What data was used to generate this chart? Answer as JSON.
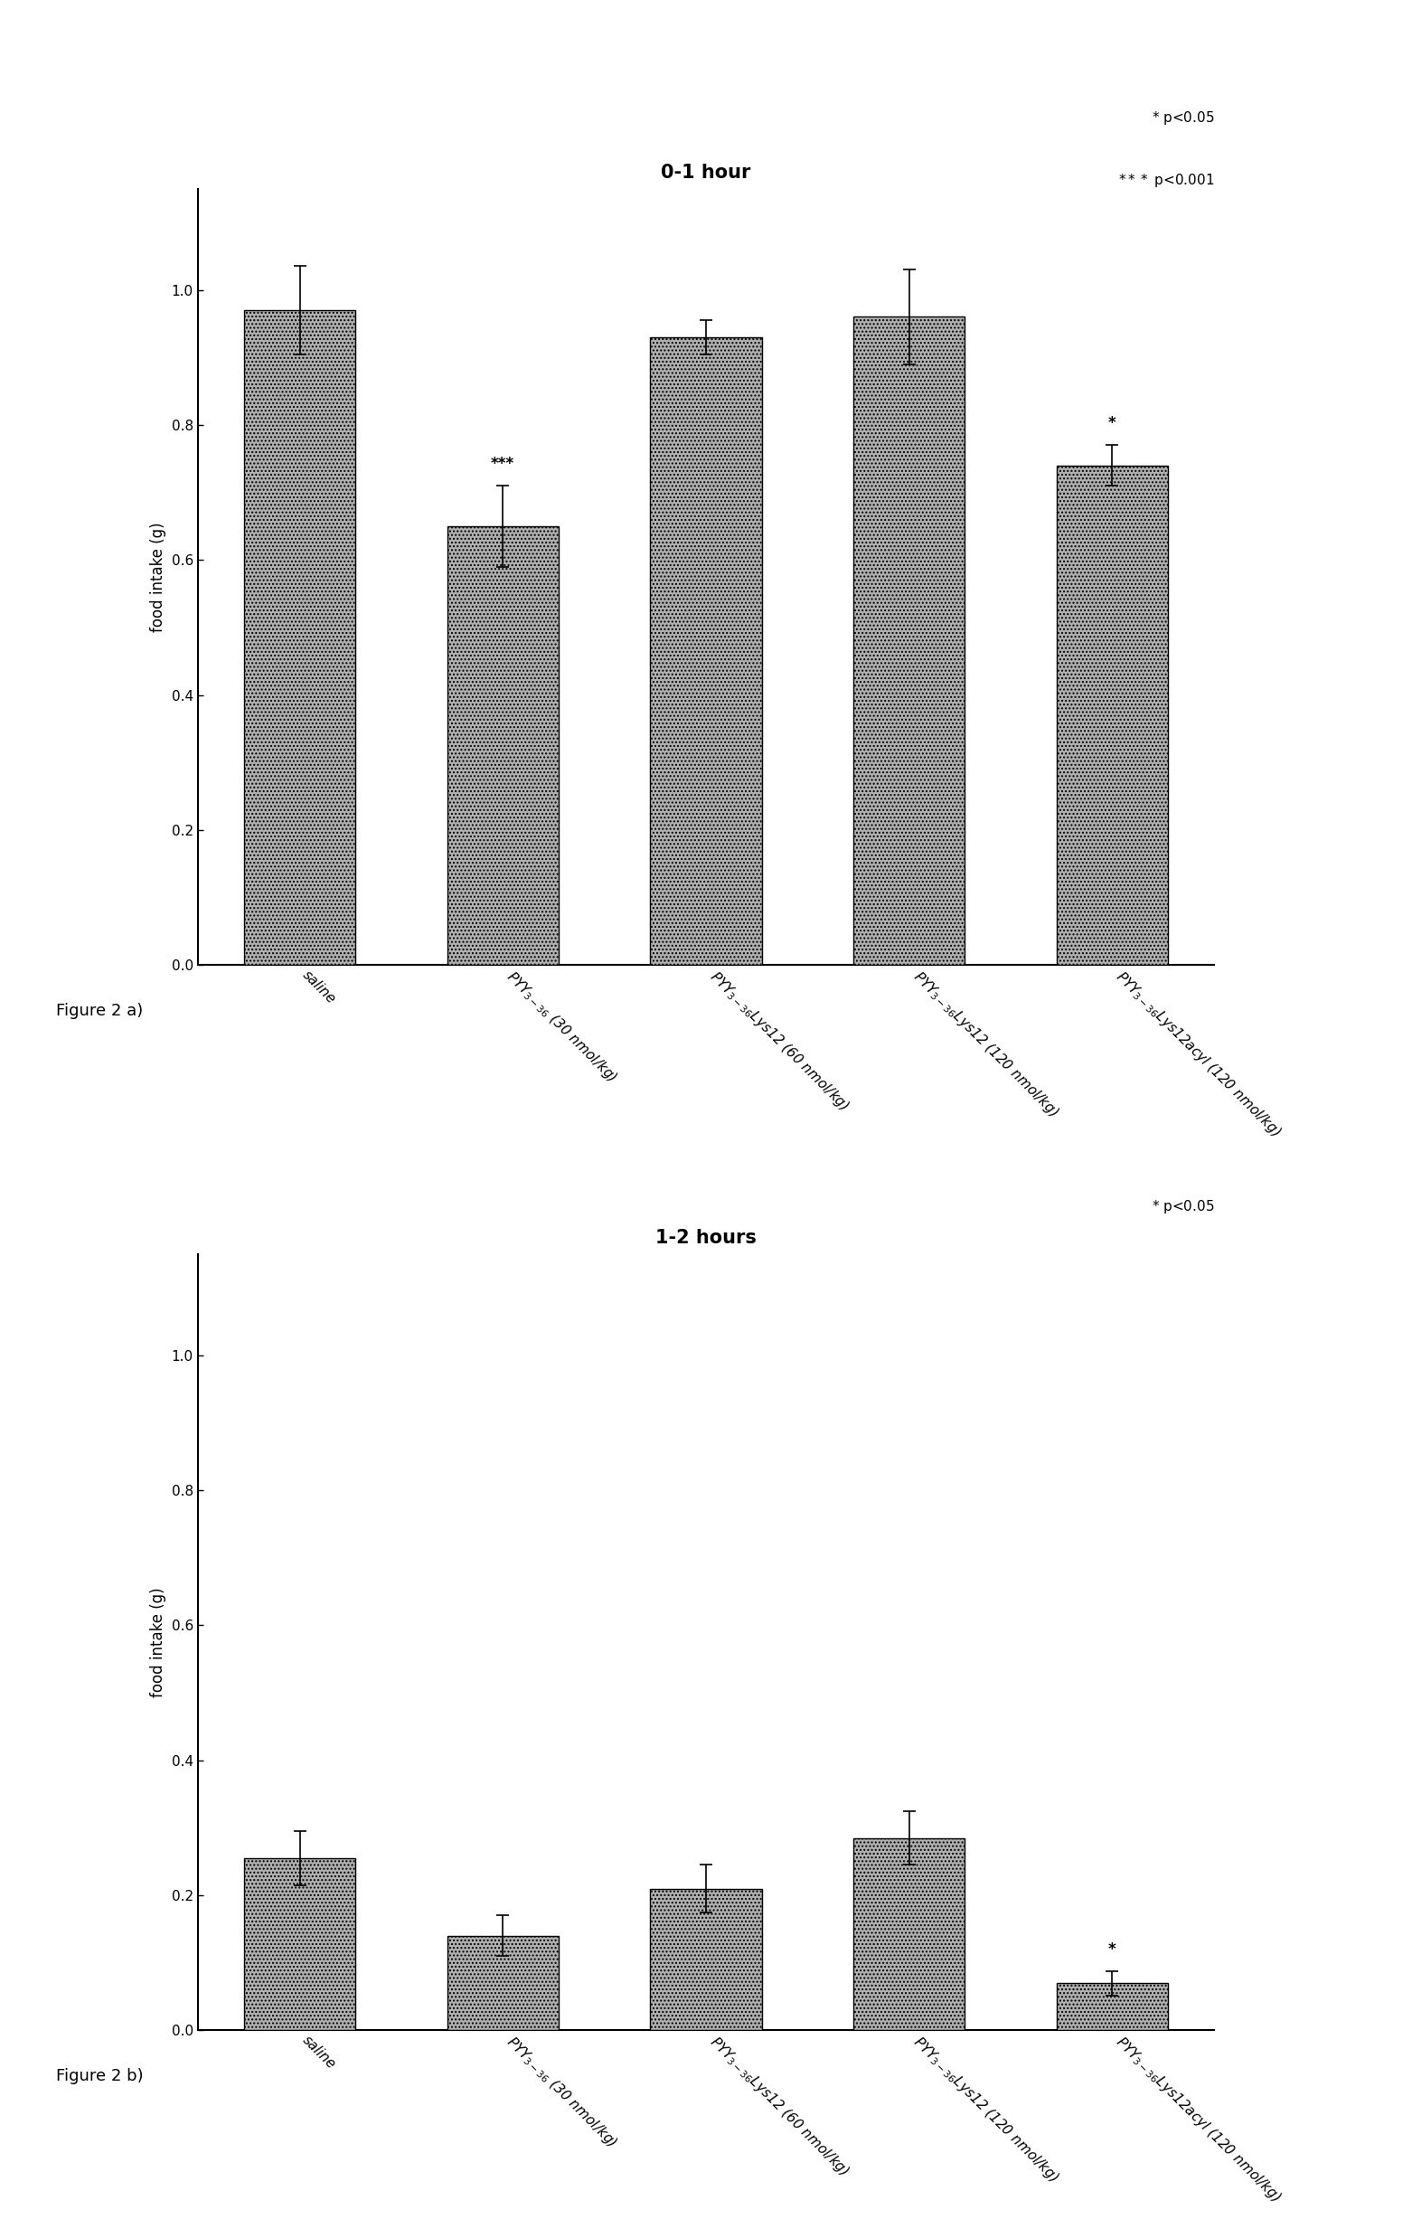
{
  "chart1": {
    "title": "0-1 hour",
    "ylabel": "food intake (g)",
    "ylim": [
      0.0,
      1.15
    ],
    "yticks": [
      0.0,
      0.2,
      0.4,
      0.6,
      0.8,
      1.0
    ],
    "values": [
      0.97,
      0.65,
      0.93,
      0.96,
      0.74
    ],
    "errors": [
      0.065,
      0.06,
      0.025,
      0.07,
      0.03
    ],
    "sig_labels": [
      "",
      "***",
      "",
      "",
      "*"
    ],
    "legend_text1": "* p<0.05",
    "legend_text2": "*** p<0.001",
    "fig_label": "Figure 2 a)"
  },
  "chart2": {
    "title": "1-2 hours",
    "ylabel": "food intake (g)",
    "ylim": [
      0.0,
      1.15
    ],
    "yticks": [
      0.0,
      0.2,
      0.4,
      0.6,
      0.8,
      1.0
    ],
    "values": [
      0.255,
      0.14,
      0.21,
      0.285,
      0.07
    ],
    "errors": [
      0.04,
      0.03,
      0.035,
      0.04,
      0.018
    ],
    "sig_labels": [
      "",
      "",
      "",
      "",
      "*"
    ],
    "legend_text1": "* p<0.05",
    "fig_label": "Figure 2 b)"
  },
  "categories": [
    "saline",
    "PYY$_{3-36}$ (30 nmol/kg)",
    "PYY$_{3-36}$Lys12 (60 nmol/kg)",
    "PYY$_{3-36}$Lys12 (120 nmol/kg)",
    "PYY$_{3-36}$Lys12acyl (120 nmol/kg)"
  ],
  "bar_color": "#b0b0b0",
  "bar_hatch": "....",
  "bar_width": 0.55,
  "fig_label_fontsize": 13,
  "title_fontsize": 15,
  "ylabel_fontsize": 12,
  "tick_fontsize": 11,
  "sig_fontsize": 12,
  "annot_fontsize": 11
}
